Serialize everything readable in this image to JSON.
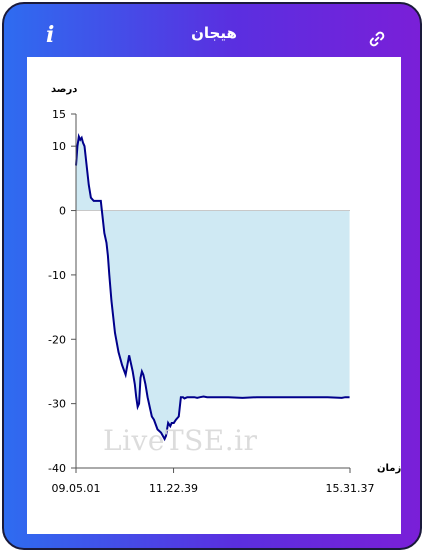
{
  "header": {
    "title": "هیجان",
    "info_icon": "info-icon",
    "link_icon": "link-icon"
  },
  "watermark": "LiveTSE.ir",
  "chart_data": {
    "type": "area",
    "ylabel": "درصد",
    "xlabel": "زمان",
    "ylim": [
      -40,
      15
    ],
    "yticks": [
      "15",
      "10",
      "0",
      "-10",
      "-20",
      "-30",
      "-40"
    ],
    "yticks_values": [
      15,
      10,
      0,
      -10,
      -20,
      -30,
      -40
    ],
    "xticks": [
      "09.05.01",
      "11.22.39",
      "15.31.37"
    ],
    "xticks_minutes": [
      545,
      682.65,
      931.62
    ],
    "xlim_minutes": [
      545,
      931.62
    ],
    "line_color": "#00008b",
    "fill_color": "#cfe9f3",
    "series": [
      {
        "x_minutes": [
          545,
          547,
          549,
          551,
          553,
          555,
          557,
          559,
          561,
          563,
          566,
          570,
          575,
          580,
          585,
          588,
          590,
          592,
          595,
          600,
          605,
          610,
          615,
          620,
          625,
          628,
          630,
          632,
          634,
          636,
          638,
          640,
          643,
          646,
          650,
          652,
          655,
          660,
          665,
          670,
          672,
          675,
          678,
          680,
          683,
          686,
          690,
          693,
          696,
          698,
          700,
          702,
          704,
          706,
          708,
          712,
          716,
          720,
          725,
          730,
          740,
          760,
          780,
          800,
          820,
          840,
          860,
          880,
          900,
          920,
          925,
          931
        ],
        "y": [
          7,
          10,
          11.5,
          11,
          11.3,
          10.5,
          10,
          8,
          6,
          4,
          2,
          1.5,
          1.5,
          1.5,
          -3.5,
          -5,
          -7,
          -10,
          -14,
          -19,
          -22,
          -24,
          -25.5,
          -22.5,
          -25,
          -27,
          -29,
          -30.5,
          -30,
          -26,
          -25,
          -25.5,
          -27,
          -29,
          -31,
          -32,
          -32.5,
          -34,
          -34.5,
          -35.5,
          -35,
          -33,
          -33.5,
          -33,
          -33,
          -32.5,
          -32,
          -29,
          -29,
          -29.2,
          -29.1,
          -29,
          -29,
          -29,
          -29,
          -29,
          -29.1,
          -29,
          -28.9,
          -29,
          -29,
          -29,
          -29.1,
          -29,
          -29,
          -29,
          -29,
          -29,
          -29,
          -29.1,
          -29,
          -29
        ]
      }
    ]
  }
}
